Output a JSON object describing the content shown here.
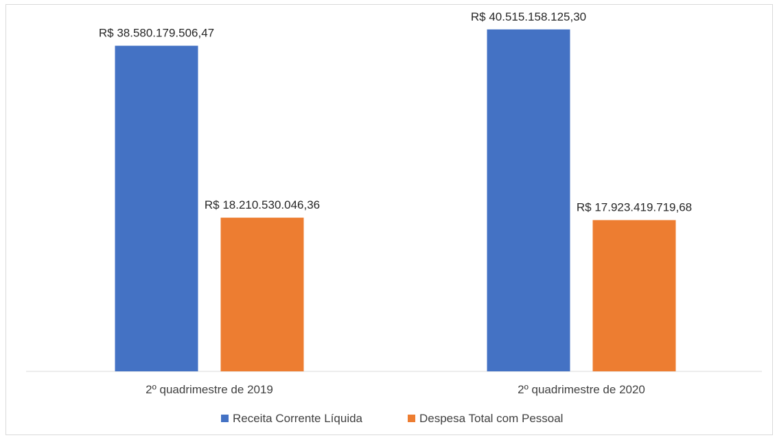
{
  "chart_data": {
    "type": "bar",
    "title": "",
    "xlabel": "",
    "ylabel": "",
    "ylim": [
      0,
      44000000000
    ],
    "grid": false,
    "legend": "bottom",
    "categories": [
      "2º quadrimestre de 2019",
      "2º quadrimestre de 2020"
    ],
    "series": [
      {
        "name": "Receita Corrente Líquida",
        "color": "#4472C4",
        "values": [
          38580179506.47,
          40515158125.3
        ],
        "labels": [
          "R$ 38.580.179.506,47",
          "R$ 40.515.158.125,30"
        ]
      },
      {
        "name": "Despesa Total com Pessoal",
        "color": "#ED7D31",
        "values": [
          18210530046.36,
          17923419719.68
        ],
        "labels": [
          "R$ 18.210.530.046,36",
          "R$ 17.923.419.719,68"
        ]
      }
    ]
  }
}
